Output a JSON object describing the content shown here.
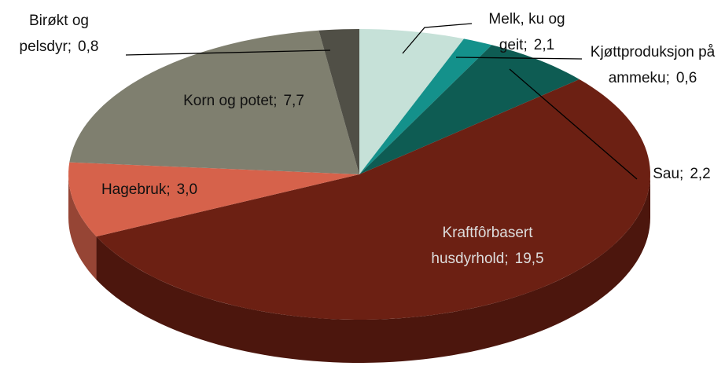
{
  "chart_data": {
    "type": "pie3d",
    "categories": [
      "Melk, ku og geit",
      "Kjøttproduksjon på ammeku",
      "Sau",
      "Kraftfôrbasert husdyrhold",
      "Hagebruk",
      "Korn og potet",
      "Birøkt og pelsdyr"
    ],
    "values": [
      2.1,
      0.6,
      2.2,
      19.5,
      3.0,
      7.7,
      0.8
    ],
    "value_labels": [
      "2,1",
      "0,6",
      "2,2",
      "19,5",
      "3,0",
      "7,7",
      "0,8"
    ],
    "label_separator": ";",
    "colors": [
      "#c6e1d8",
      "#14918b",
      "#0e5c53",
      "#6c2013",
      "#d6624b",
      "#7f7f6f",
      "#504f46"
    ]
  }
}
